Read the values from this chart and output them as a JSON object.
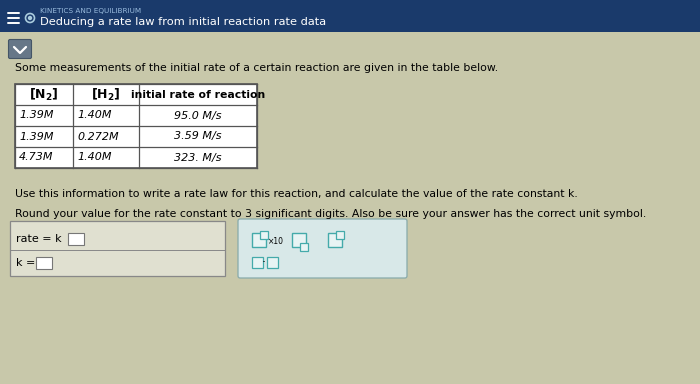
{
  "header_bg": "#1a3a6b",
  "header_text1": "KINETICS AND EQUILIBRIUM",
  "header_text2": "Deducing a rate law from initial reaction rate data",
  "body_bg": "#c8c8aa",
  "intro_text": "Some measurements of the initial rate of a certain reaction are given in the table below.",
  "col_header0": "[N₂]",
  "col_header1": "[H₂]",
  "col_header2": "initial rate of reaction",
  "rows": [
    [
      "1.39M",
      "1.40M",
      "95.0 M/s"
    ],
    [
      "1.39M",
      "0.272M",
      "3.59 M/s"
    ],
    [
      "4.73M",
      "1.40M",
      "323. M/s"
    ]
  ],
  "use_text": "Use this information to write a rate law for this reaction, and calculate the value of the rate constant k.",
  "round_text": "Round your value for the rate constant to 3 significant digits. Also be sure your answer has the correct unit symbol.",
  "rate_label": "rate = k",
  "k_label": "k =",
  "table_bg": "#ffffff",
  "table_border": "#555555",
  "input_area_bg": "#e0e0d0",
  "input_area_border": "#888888",
  "input_box_bg": "#ffffff",
  "input_box_border": "#777777",
  "btn_area_bg": "#d8e8e8",
  "btn_area_border": "#88aaaa",
  "btn_bg": "#c8e0e0",
  "btn_border": "#44aaaa",
  "chevron_bg": "#667788",
  "chevron_border": "#445566"
}
